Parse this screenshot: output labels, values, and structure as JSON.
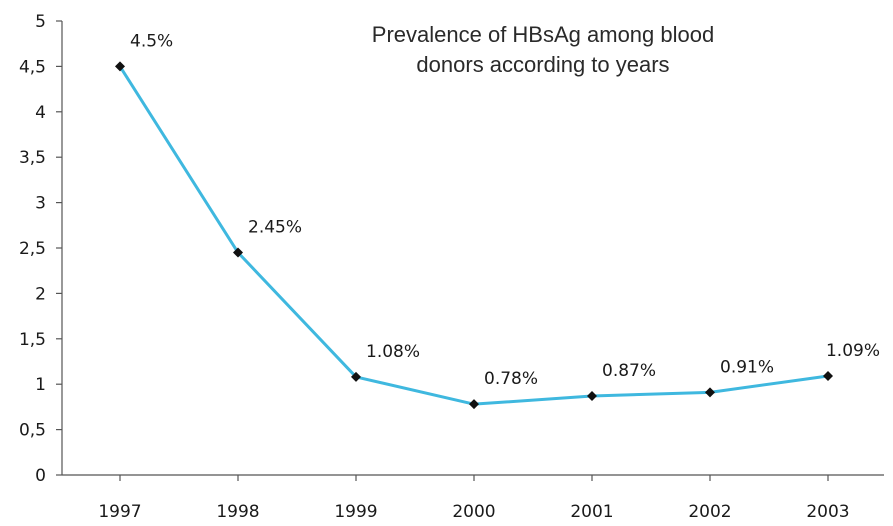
{
  "chart_data": {
    "type": "line",
    "title_lines": [
      "Prevalence of HBsAg among blood",
      "donors according to years"
    ],
    "categories": [
      "1997",
      "1998",
      "1999",
      "2000",
      "2001",
      "2002",
      "2003"
    ],
    "values": [
      4.5,
      2.45,
      1.08,
      0.78,
      0.87,
      0.91,
      1.09
    ],
    "data_labels": [
      "4.5%",
      "2.45%",
      "1.08%",
      "0.78%",
      "0.87%",
      "0.91%",
      "1.09%"
    ],
    "y_ticks": [
      "0",
      "0,5",
      "1",
      "1,5",
      "2",
      "2,5",
      "3",
      "3,5",
      "4",
      "4,5",
      "5"
    ],
    "ylim": [
      0,
      5
    ],
    "xlabel": "",
    "ylabel": "",
    "grid": false,
    "legend": "none",
    "line_color": "#3fb8df",
    "marker_color": "#111111",
    "axis_color": "#555555"
  }
}
